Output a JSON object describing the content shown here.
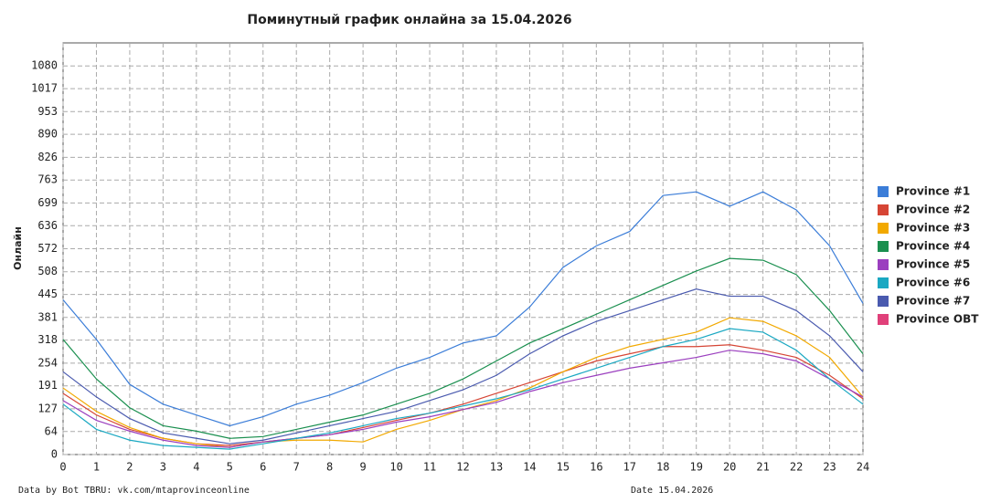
{
  "chart_data": {
    "type": "line",
    "title": "Поминутный график онлайна за 15.04.2026",
    "ylabel": "Онлайн",
    "footer_left": "Data by Bot TBRU: vk.com/mtaprovinceonline",
    "footer_right": "Date 15.04.2026",
    "x": [
      0,
      1,
      2,
      3,
      4,
      5,
      6,
      7,
      8,
      9,
      10,
      11,
      12,
      13,
      14,
      15,
      16,
      17,
      18,
      19,
      20,
      21,
      22,
      23,
      24
    ],
    "xlim": [
      0,
      24
    ],
    "xticks": [
      0,
      1,
      2,
      3,
      4,
      5,
      6,
      7,
      8,
      9,
      10,
      11,
      12,
      13,
      14,
      15,
      16,
      17,
      18,
      19,
      20,
      21,
      22,
      23,
      24
    ],
    "ylim": [
      0,
      1144
    ],
    "yticks": [
      0,
      64,
      127,
      191,
      254,
      318,
      381,
      445,
      508,
      572,
      636,
      699,
      763,
      826,
      890,
      953,
      1017,
      1080
    ],
    "grid": true,
    "legend": "right",
    "series": [
      {
        "name": "Province #1",
        "color": "#3b7dd8",
        "values": [
          430,
          320,
          195,
          140,
          110,
          80,
          105,
          140,
          165,
          200,
          240,
          270,
          310,
          330,
          410,
          520,
          580,
          620,
          720,
          730,
          690,
          730,
          680,
          580,
          420
        ]
      },
      {
        "name": "Province #2",
        "color": "#d64535",
        "values": [
          170,
          110,
          70,
          45,
          30,
          25,
          35,
          45,
          55,
          75,
          95,
          115,
          140,
          170,
          200,
          230,
          260,
          280,
          300,
          300,
          305,
          290,
          270,
          220,
          155
        ]
      },
      {
        "name": "Province #3",
        "color": "#f2a900",
        "values": [
          185,
          120,
          75,
          45,
          30,
          20,
          35,
          40,
          40,
          35,
          70,
          95,
          125,
          150,
          185,
          230,
          270,
          300,
          320,
          340,
          380,
          370,
          330,
          270,
          160
        ]
      },
      {
        "name": "Province #4",
        "color": "#1a8f4f",
        "values": [
          320,
          210,
          130,
          80,
          65,
          45,
          50,
          70,
          90,
          110,
          140,
          170,
          210,
          260,
          310,
          350,
          390,
          430,
          470,
          510,
          545,
          540,
          500,
          400,
          280
        ]
      },
      {
        "name": "Province #5",
        "color": "#9b3fbf",
        "values": [
          150,
          95,
          65,
          40,
          25,
          20,
          35,
          45,
          55,
          70,
          90,
          105,
          125,
          145,
          175,
          200,
          220,
          240,
          255,
          270,
          290,
          280,
          260,
          210,
          160
        ]
      },
      {
        "name": "Province #6",
        "color": "#1aa8c2",
        "values": [
          140,
          70,
          40,
          25,
          20,
          15,
          30,
          45,
          60,
          80,
          100,
          115,
          135,
          155,
          180,
          210,
          240,
          270,
          300,
          320,
          350,
          340,
          290,
          210,
          140
        ]
      },
      {
        "name": "Province #7",
        "color": "#4a5aaf",
        "values": [
          230,
          160,
          100,
          60,
          45,
          30,
          40,
          60,
          80,
          100,
          120,
          150,
          180,
          220,
          280,
          330,
          370,
          400,
          430,
          460,
          440,
          440,
          400,
          330,
          230
        ]
      },
      {
        "name": "Province OBT",
        "color": "#e0407a",
        "values": [
          null,
          null,
          null,
          null,
          null,
          null,
          null,
          null,
          null,
          null,
          null,
          null,
          null,
          null,
          null,
          null,
          null,
          null,
          null,
          null,
          null,
          null,
          null,
          null,
          null
        ]
      }
    ]
  }
}
